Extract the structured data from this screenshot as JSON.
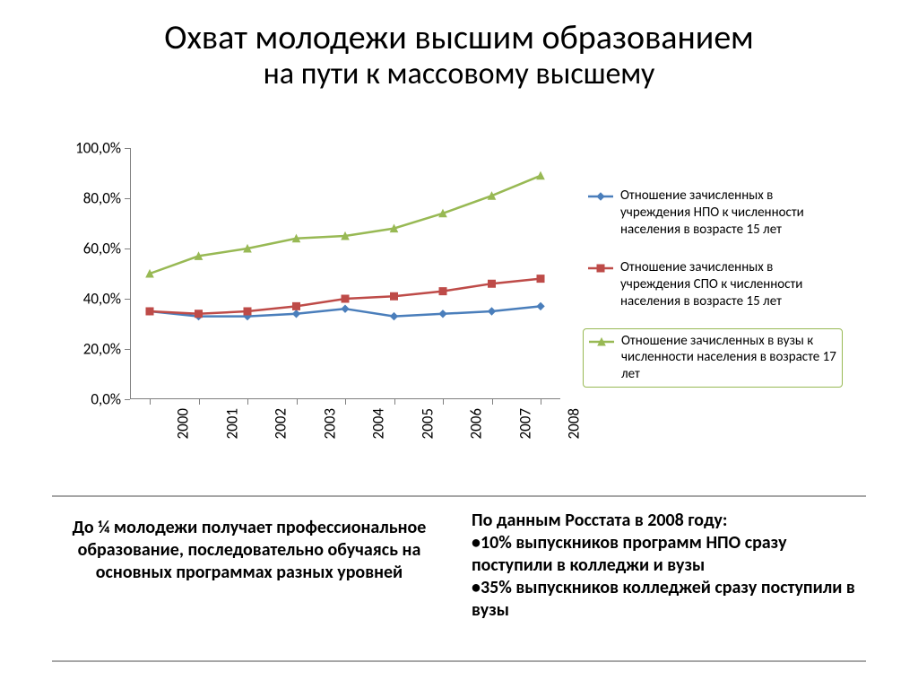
{
  "title": {
    "main": "Охват молодежи высшим образованием",
    "sub": "на пути к массовому высшему"
  },
  "chart": {
    "type": "line",
    "background_color": "#ffffff",
    "axis_color": "#7f7f7f",
    "ylim": [
      0,
      100
    ],
    "yticks": [
      0,
      20,
      40,
      60,
      80,
      100
    ],
    "ytick_labels": [
      "0,0%",
      "20,0%",
      "40,0%",
      "60,0%",
      "80,0%",
      "100,0%"
    ],
    "ylabel_fontsize": 17,
    "categories": [
      "2000",
      "2001",
      "2002",
      "2003",
      "2004",
      "2005",
      "2006",
      "2007",
      "2008"
    ],
    "xlabel_fontsize": 17,
    "xlabel_rotation": -90,
    "series": [
      {
        "id": "npo",
        "label": "Отношение зачисленных в учреждения НПО к численности населения в возрасте 15 лет",
        "color": "#4a7ebb",
        "line_width": 2.5,
        "marker": "diamond",
        "marker_size": 8,
        "values": [
          35,
          33,
          33,
          34,
          36,
          33,
          34,
          35,
          37
        ]
      },
      {
        "id": "spo",
        "label": "Отношение зачисленных в учреждения СПО к численности населения в возрасте 15 лет",
        "color": "#be4b48",
        "line_width": 2.5,
        "marker": "square",
        "marker_size": 8,
        "values": [
          35,
          34,
          35,
          37,
          40,
          41,
          43,
          46,
          48
        ]
      },
      {
        "id": "vuz",
        "label": "Отношение зачисленных в вузы к численности населения в возрасте 17 лет",
        "color": "#98b954",
        "line_width": 2.5,
        "marker": "triangle",
        "marker_size": 8,
        "values": [
          50,
          57,
          60,
          64,
          65,
          68,
          74,
          81,
          89
        ]
      }
    ],
    "legend": {
      "fontsize": 15,
      "highlight_series": "vuz",
      "highlight_border_color": "#98b954"
    }
  },
  "notes": {
    "left": "До ¼ молодежи получает профессиональное образование, последовательно обучаясь на основных программах разных уровней",
    "right_title": "По данным Росстата в 2008 году:",
    "right_bullets": [
      "10% выпускников программ НПО сразу поступили в колледжи и вузы",
      "35% выпускников колледжей сразу поступили в вузы"
    ],
    "fontsize": 20,
    "fontweight": 700,
    "divider_color": "#a6a6a6"
  }
}
